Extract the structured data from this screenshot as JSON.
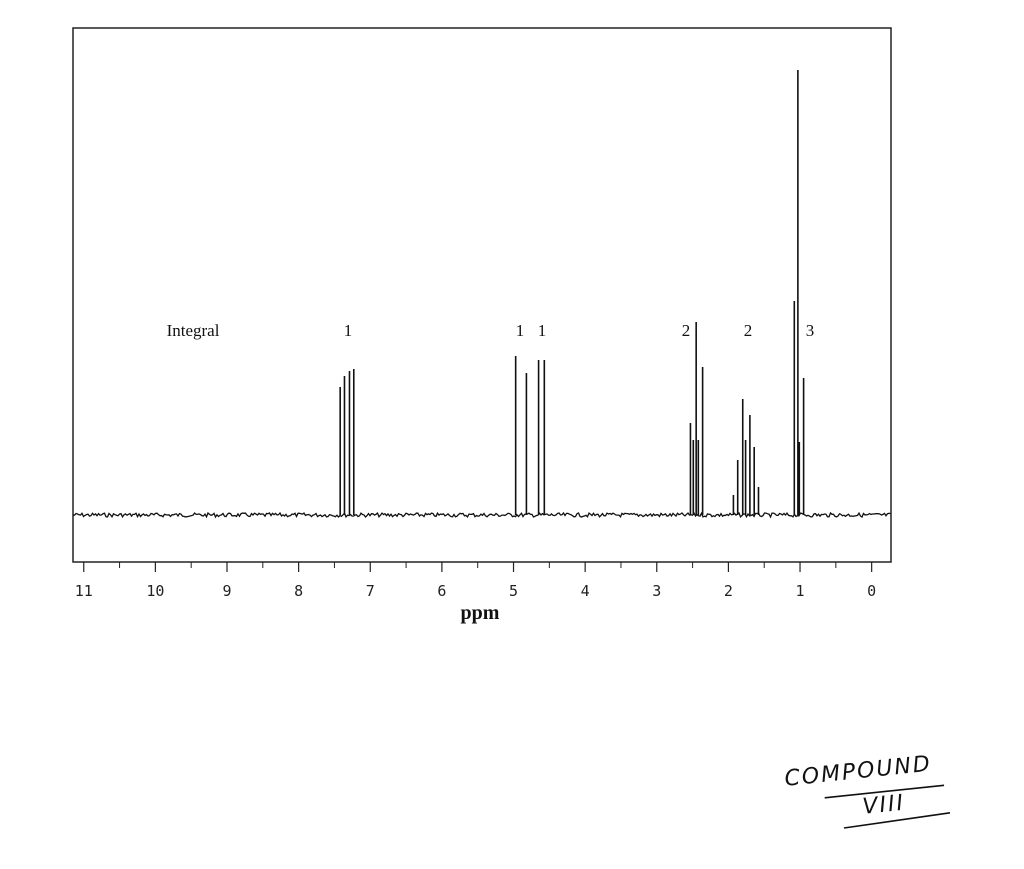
{
  "chart_data": {
    "type": "spectrum",
    "x_label": "ppm",
    "xlim": [
      11.15,
      -0.27
    ],
    "ylim": [
      -4.7,
      48.7
    ],
    "xticks": [
      0,
      1,
      2,
      3,
      4,
      5,
      6,
      7,
      8,
      9,
      10,
      11
    ],
    "color": "#111111",
    "peaks": {
      "x": [
        7.42,
        7.36,
        7.29,
        7.23,
        4.97,
        4.82,
        4.65,
        4.57,
        2.53,
        2.49,
        2.45,
        2.42,
        2.36,
        1.93,
        1.87,
        1.8,
        1.76,
        1.7,
        1.64,
        1.58,
        1.08,
        1.03,
        1.01,
        0.95
      ],
      "values": [
        12.8,
        13.9,
        14.4,
        14.6,
        15.9,
        14.2,
        15.5,
        15.5,
        9.2,
        7.5,
        19.3,
        7.5,
        14.8,
        2.0,
        5.5,
        11.6,
        7.5,
        10.0,
        6.8,
        2.8,
        21.4,
        44.5,
        7.3,
        13.7
      ]
    },
    "integral": {
      "label": "Integral",
      "values": [
        1,
        1,
        1,
        2,
        2,
        3
      ]
    },
    "annotation": {
      "line1": "COMPOUND",
      "line2": "VIII"
    }
  }
}
